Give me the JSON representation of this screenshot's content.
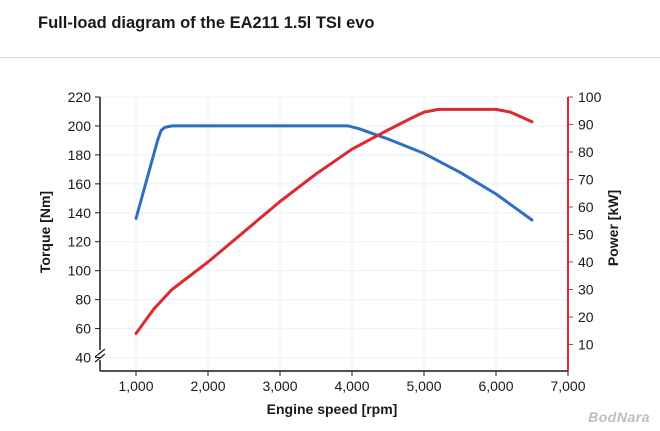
{
  "title": "Full-load diagram of the EA211 1.5l TSI evo",
  "watermark": "BodNara",
  "colors": {
    "torque": "#2f6fbf",
    "power": "#dd2a2f",
    "axis": "#1a1a1a",
    "grid": "#e8f0fb"
  },
  "chart_data": {
    "type": "line",
    "title": "Full-load diagram of the EA211 1.5l TSI evo",
    "xlabel": "Engine speed [rpm]",
    "ylabel_left": "Torque [Nm]",
    "ylabel_right": "Power [kW]",
    "xlim": [
      500,
      7000
    ],
    "ylim_left": [
      30,
      220
    ],
    "ylim_right": [
      0,
      100
    ],
    "x_ticks": [
      1000,
      2000,
      3000,
      4000,
      5000,
      6000,
      7000
    ],
    "x_tick_labels": [
      "1,000",
      "2,000",
      "3,000",
      "4,000",
      "5,000",
      "6,000",
      "7,000"
    ],
    "y_ticks_left": [
      40,
      60,
      80,
      100,
      120,
      140,
      160,
      180,
      200,
      220
    ],
    "y_ticks_right": [
      10,
      20,
      30,
      40,
      50,
      60,
      70,
      80,
      90,
      100
    ],
    "grid": true,
    "series": [
      {
        "axis": "left",
        "color": "#2f6fbf",
        "x": [
          1000,
          1300,
          1350,
          1400,
          1500,
          2000,
          3000,
          3950,
          4100,
          4500,
          5000,
          5500,
          6000,
          6500
        ],
        "y": [
          136,
          190,
          197,
          199,
          200,
          200,
          200,
          200,
          198,
          191,
          181,
          168,
          153,
          135
        ]
      },
      {
        "axis": "right",
        "color": "#dd2a2f",
        "x": [
          1000,
          1250,
          1500,
          2000,
          2500,
          3000,
          3500,
          4000,
          4500,
          4800,
          5000,
          5200,
          5500,
          6000,
          6200,
          6500
        ],
        "y": [
          14,
          23,
          30,
          40,
          51,
          62,
          72,
          81,
          88,
          92,
          94.5,
          95.5,
          95.5,
          95.5,
          94.5,
          91
        ]
      }
    ]
  }
}
